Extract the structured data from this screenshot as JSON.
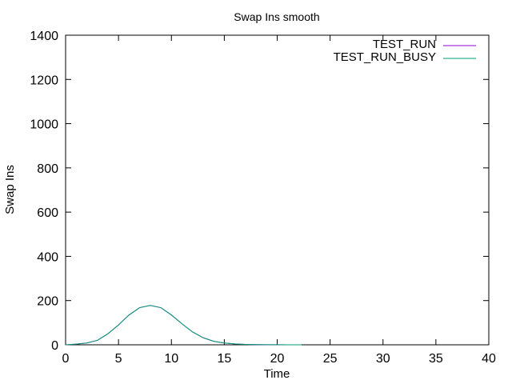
{
  "chart_data": {
    "type": "line",
    "title": "Swap Ins smooth",
    "xlabel": "Time",
    "ylabel": "Swap Ins",
    "xlim": [
      0,
      40
    ],
    "ylim": [
      0,
      1400
    ],
    "xticks": [
      0,
      5,
      10,
      15,
      20,
      25,
      30,
      35,
      40
    ],
    "yticks": [
      0,
      200,
      400,
      600,
      800,
      1000,
      1200,
      1400
    ],
    "grid": false,
    "legend_position": "top-right",
    "series": [
      {
        "name": "TEST_RUN",
        "color": "#9400d3",
        "x": [
          0,
          1,
          2,
          3,
          4,
          5,
          6,
          7,
          8,
          9,
          10,
          11,
          12,
          13,
          14,
          15,
          16,
          17,
          18,
          19,
          20,
          21,
          22.3
        ],
        "y": [
          0,
          3,
          8,
          20,
          50,
          90,
          135,
          168,
          178,
          168,
          135,
          95,
          58,
          32,
          16,
          8,
          4,
          2,
          1,
          0.5,
          0.3,
          0.1,
          0
        ]
      },
      {
        "name": "TEST_RUN_BUSY",
        "color": "#009e73",
        "x": [
          0,
          1,
          2,
          3,
          4,
          5,
          6,
          7,
          8,
          9,
          10,
          11,
          12,
          13,
          14,
          15,
          16,
          17,
          18,
          19,
          20,
          21,
          22.3
        ],
        "y": [
          0,
          3,
          8,
          20,
          50,
          90,
          135,
          168,
          178,
          168,
          135,
          95,
          58,
          32,
          16,
          8,
          4,
          2,
          1,
          0.5,
          0.3,
          0.1,
          0
        ]
      }
    ]
  }
}
